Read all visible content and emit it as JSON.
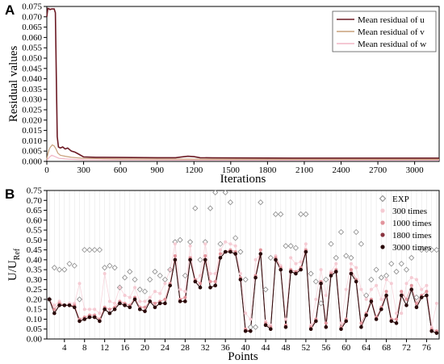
{
  "chart_data": [
    {
      "type": "line",
      "panel_label": "A",
      "xlabel": "Iterations",
      "ylabel": "Residual values",
      "xlim": [
        0,
        3200
      ],
      "ylim": [
        0,
        0.075
      ],
      "xticks": [
        "0",
        "300",
        "600",
        "900",
        "1200",
        "1500",
        "1800",
        "2100",
        "2400",
        "2700",
        "3000"
      ],
      "yticks": [
        "0.000",
        "0.005",
        "0.010",
        "0.015",
        "0.020",
        "0.025",
        "0.030",
        "0.035",
        "0.040",
        "0.045",
        "0.050",
        "0.055",
        "0.060",
        "0.065",
        "0.070",
        "0.075"
      ],
      "legend_position": "top-right",
      "series": [
        {
          "name": "Mean residual of u",
          "color": "#6b1a24",
          "x": [
            0,
            8,
            15,
            25,
            40,
            60,
            70,
            78,
            85,
            95,
            110,
            130,
            150,
            170,
            200,
            230,
            260,
            300,
            400,
            600,
            900,
            1050,
            1100,
            1150,
            1200,
            1250,
            1350,
            2000,
            2600,
            3200
          ],
          "y": [
            0.07,
            0.074,
            0.074,
            0.0735,
            0.0738,
            0.0738,
            0.072,
            0.04,
            0.012,
            0.007,
            0.0065,
            0.007,
            0.006,
            0.0065,
            0.005,
            0.0045,
            0.0035,
            0.0022,
            0.002,
            0.0019,
            0.0018,
            0.0018,
            0.0022,
            0.0025,
            0.0023,
            0.0018,
            0.0017,
            0.0016,
            0.0016,
            0.0016
          ]
        },
        {
          "name": "Mean residual of v",
          "color": "#c9a07a",
          "x": [
            0,
            10,
            20,
            30,
            45,
            60,
            75,
            90,
            110,
            150,
            200,
            300,
            600,
            1200,
            2000,
            3200
          ],
          "y": [
            0.001,
            0.004,
            0.006,
            0.007,
            0.008,
            0.0075,
            0.006,
            0.004,
            0.003,
            0.0025,
            0.002,
            0.0015,
            0.0012,
            0.0011,
            0.001,
            0.001
          ]
        },
        {
          "name": "Mean residual of w",
          "color": "#f2b6c6",
          "x": [
            0,
            20,
            40,
            60,
            80,
            100,
            150,
            200,
            300,
            600,
            1200,
            2000,
            3200
          ],
          "y": [
            0.0005,
            0.002,
            0.003,
            0.0025,
            0.002,
            0.0015,
            0.0012,
            0.001,
            0.0008,
            0.0007,
            0.0006,
            0.0006,
            0.0006
          ]
        }
      ]
    },
    {
      "type": "scatter",
      "panel_label": "B",
      "xlabel": "Points",
      "ylabel_main": "U/U",
      "ylabel_sub": "Ref",
      "xlim": [
        0.5,
        78.5
      ],
      "ylim": [
        0,
        0.75
      ],
      "xticks": [
        4,
        8,
        12,
        16,
        20,
        24,
        28,
        32,
        36,
        40,
        44,
        48,
        52,
        56,
        60,
        64,
        68,
        72,
        76
      ],
      "yticks": [
        "0.00",
        "0.05",
        "0.10",
        "0.15",
        "0.20",
        "0.25",
        "0.30",
        "0.35",
        "0.40",
        "0.45",
        "0.50",
        "0.55",
        "0.60",
        "0.65",
        "0.70",
        "0.75"
      ],
      "legend_position": "top-right",
      "series": [
        {
          "name": "EXP",
          "color": "#8a8a8a",
          "marker": "diamond",
          "values": [
            0.2,
            0.36,
            0.35,
            0.35,
            0.38,
            0.37,
            0.2,
            0.45,
            0.45,
            0.45,
            0.45,
            0.36,
            0.37,
            0.36,
            0.26,
            0.31,
            0.34,
            0.3,
            0.25,
            0.24,
            0.3,
            0.34,
            0.32,
            0.3,
            0.35,
            0.49,
            0.5,
            0.32,
            0.49,
            0.66,
            0.4,
            0.49,
            0.66,
            0.74,
            0.48,
            0.74,
            0.69,
            0.51,
            0.44,
            0.3,
            0.06,
            0.06,
            0.69,
            0.25,
            0.41,
            0.63,
            0.63,
            0.47,
            0.47,
            0.46,
            0.63,
            0.63,
            0.33,
            0.29,
            0.18,
            0.3,
            0.48,
            0.41,
            0.54,
            0.42,
            0.41,
            0.54,
            0.48,
            0.22,
            0.3,
            0.35,
            0.31,
            0.32,
            0.38,
            0.34,
            0.38,
            0.35,
            0.41,
            0.21,
            0.45,
            0.45,
            0.45,
            0.45
          ]
        },
        {
          "name": "300 times",
          "color": "#f5cbd3",
          "marker": "circle",
          "values": [
            0.2,
            0.17,
            0.19,
            0.17,
            0.18,
            0.18,
            0.28,
            0.15,
            0.15,
            0.15,
            0.13,
            0.33,
            0.19,
            0.18,
            0.26,
            0.22,
            0.21,
            0.26,
            0.19,
            0.19,
            0.21,
            0.24,
            0.23,
            0.28,
            0.35,
            0.48,
            0.25,
            0.24,
            0.47,
            0.29,
            0.32,
            0.48,
            0.33,
            0.33,
            0.45,
            0.49,
            0.48,
            0.47,
            0.33,
            0.13,
            0.1,
            0.4,
            0.43,
            0.09,
            0.07,
            0.42,
            0.37,
            0.1,
            0.41,
            0.38,
            0.39,
            0.48,
            0.07,
            0.2,
            0.35,
            0.22,
            0.34,
            0.38,
            0.08,
            0.25,
            0.38,
            0.36,
            0.25,
            0.2,
            0.25,
            0.27,
            0.2,
            0.3,
            0.28,
            0.13,
            0.13,
            0.28,
            0.31,
            0.3,
            0.25,
            0.27,
            0.06,
            0.18
          ]
        },
        {
          "name": "1000 times",
          "color": "#e2949c",
          "marker": "circle",
          "values": [
            0.2,
            0.15,
            0.18,
            0.17,
            0.17,
            0.17,
            0.1,
            0.11,
            0.12,
            0.12,
            0.1,
            0.16,
            0.15,
            0.16,
            0.19,
            0.18,
            0.17,
            0.21,
            0.16,
            0.16,
            0.19,
            0.18,
            0.19,
            0.2,
            0.28,
            0.42,
            0.2,
            0.21,
            0.41,
            0.3,
            0.28,
            0.42,
            0.29,
            0.29,
            0.43,
            0.44,
            0.45,
            0.44,
            0.31,
            0.05,
            0.04,
            0.32,
            0.45,
            0.08,
            0.06,
            0.41,
            0.36,
            0.07,
            0.35,
            0.34,
            0.36,
            0.45,
            0.06,
            0.1,
            0.29,
            0.08,
            0.33,
            0.35,
            0.06,
            0.1,
            0.35,
            0.3,
            0.08,
            0.13,
            0.2,
            0.11,
            0.16,
            0.24,
            0.1,
            0.1,
            0.24,
            0.2,
            0.27,
            0.18,
            0.22,
            0.24,
            0.05,
            0.04
          ]
        },
        {
          "name": "1800 times",
          "color": "#8a3440",
          "marker": "circle",
          "values": [
            0.2,
            0.13,
            0.17,
            0.17,
            0.17,
            0.16,
            0.09,
            0.1,
            0.11,
            0.11,
            0.09,
            0.15,
            0.13,
            0.15,
            0.18,
            0.17,
            0.16,
            0.2,
            0.15,
            0.14,
            0.19,
            0.16,
            0.18,
            0.18,
            0.27,
            0.4,
            0.19,
            0.19,
            0.4,
            0.29,
            0.26,
            0.4,
            0.26,
            0.27,
            0.41,
            0.44,
            0.44,
            0.43,
            0.3,
            0.04,
            0.04,
            0.31,
            0.43,
            0.07,
            0.05,
            0.4,
            0.35,
            0.06,
            0.34,
            0.33,
            0.35,
            0.44,
            0.05,
            0.09,
            0.28,
            0.06,
            0.32,
            0.34,
            0.05,
            0.09,
            0.33,
            0.29,
            0.06,
            0.12,
            0.19,
            0.1,
            0.15,
            0.22,
            0.09,
            0.08,
            0.22,
            0.17,
            0.25,
            0.16,
            0.21,
            0.22,
            0.04,
            0.03
          ]
        },
        {
          "name": "3000 times",
          "color": "#2a0a0a",
          "marker": "circle",
          "values": [
            0.2,
            0.13,
            0.17,
            0.17,
            0.17,
            0.16,
            0.09,
            0.1,
            0.11,
            0.11,
            0.09,
            0.15,
            0.13,
            0.15,
            0.18,
            0.17,
            0.16,
            0.2,
            0.15,
            0.14,
            0.19,
            0.16,
            0.18,
            0.18,
            0.27,
            0.4,
            0.19,
            0.19,
            0.4,
            0.29,
            0.26,
            0.4,
            0.26,
            0.27,
            0.41,
            0.44,
            0.44,
            0.43,
            0.3,
            0.04,
            0.04,
            0.31,
            0.43,
            0.07,
            0.05,
            0.4,
            0.35,
            0.06,
            0.34,
            0.33,
            0.35,
            0.44,
            0.05,
            0.09,
            0.28,
            0.06,
            0.32,
            0.34,
            0.05,
            0.09,
            0.33,
            0.29,
            0.06,
            0.12,
            0.19,
            0.1,
            0.15,
            0.22,
            0.09,
            0.08,
            0.22,
            0.17,
            0.25,
            0.16,
            0.21,
            0.22,
            0.04,
            0.03
          ]
        }
      ]
    }
  ]
}
